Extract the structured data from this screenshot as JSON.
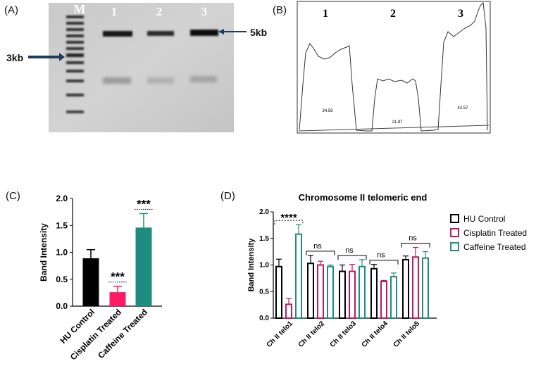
{
  "panels": {
    "a": {
      "label": "(A)",
      "lane_labels": [
        "M",
        "1",
        "2",
        "3"
      ],
      "marker_3kb": "3kb",
      "marker_5kb": "5kb"
    },
    "b": {
      "label": "(B)",
      "peak_labels": [
        "1",
        "2",
        "3"
      ],
      "peak_values": [
        "34.56",
        "21.87",
        "42.57"
      ]
    },
    "c": {
      "label": "(C)"
    },
    "d": {
      "label": "(D)"
    }
  },
  "colors": {
    "hu_control": "#000000",
    "cisplatin": "#ff1a66",
    "caffeine": "#1e8c7e",
    "cisplatin_outline": "#c2185b",
    "caffeine_outline": "#1e8c7e"
  },
  "chart_data": [
    {
      "id": "C",
      "type": "bar",
      "title": "",
      "xlabel": "",
      "ylabel": "Band Intensity",
      "ylim": [
        0,
        2.0
      ],
      "yticks": [
        "0.0",
        "0.5",
        "1.0",
        "1.5",
        "2.0"
      ],
      "categories": [
        "HU Control",
        "Cisplatin Treated",
        "Caffeine Treated"
      ],
      "values": [
        0.89,
        0.26,
        1.46
      ],
      "errors": [
        0.16,
        0.11,
        0.26
      ],
      "significance": [
        "",
        "***",
        "***"
      ]
    },
    {
      "id": "D",
      "type": "bar",
      "title": "Chromosome II telomeric end",
      "xlabel": "",
      "ylabel": "Band Intensity",
      "ylim": [
        0,
        2.0
      ],
      "yticks": [
        "0.0",
        "0.5",
        "1.0",
        "1.5",
        "2.0"
      ],
      "categories": [
        "Ch II telo1",
        "Ch II telo2",
        "Ch II telo3",
        "Ch II telo4",
        "Ch II telo5"
      ],
      "series": [
        {
          "name": "HU Control",
          "values": [
            0.97,
            1.03,
            0.88,
            0.93,
            1.1
          ],
          "errors": [
            0.14,
            0.15,
            0.12,
            0.08,
            0.07
          ]
        },
        {
          "name": "Cisplatin Treated",
          "values": [
            0.26,
            1.0,
            0.88,
            0.69,
            1.15
          ],
          "errors": [
            0.11,
            0.07,
            0.13,
            0.02,
            0.18
          ]
        },
        {
          "name": "Caffeine Treated",
          "values": [
            1.58,
            0.97,
            0.97,
            0.78,
            1.13
          ],
          "errors": [
            0.18,
            0.03,
            0.13,
            0.07,
            0.12
          ]
        }
      ],
      "significance": [
        "****",
        "ns",
        "ns",
        "ns",
        "ns"
      ],
      "legend_position": "top-right"
    }
  ]
}
